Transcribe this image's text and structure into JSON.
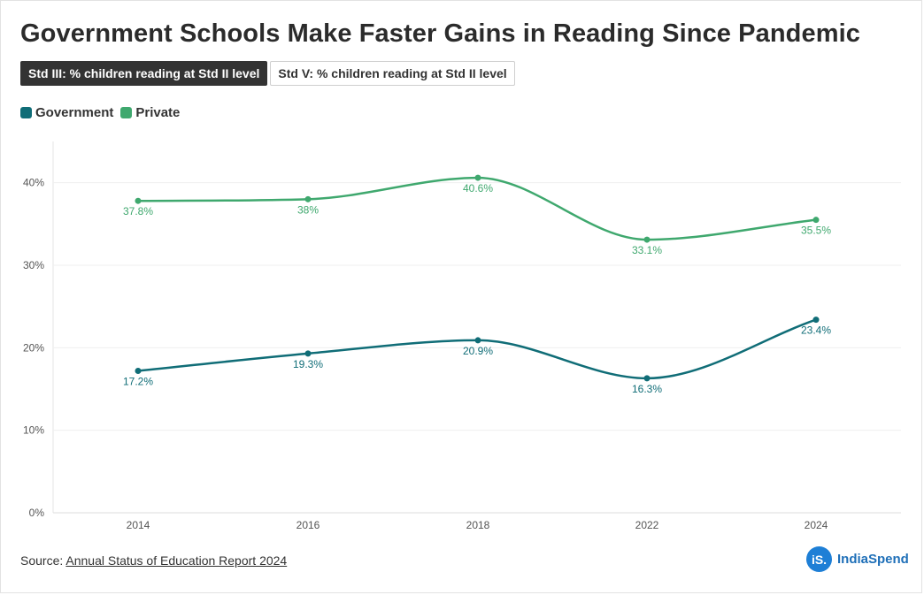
{
  "title": "Government Schools Make Faster Gains in Reading Since Pandemic",
  "tabs": [
    {
      "label": "Std III: % children reading at Std II level",
      "active": true
    },
    {
      "label": "Std V: % children reading at Std II level",
      "active": false
    }
  ],
  "source": {
    "prefix": "Source: ",
    "link_text": "Annual Status of Education Report 2024"
  },
  "brand": {
    "badge": "iS.",
    "name": "IndiaSpend"
  },
  "chart_data": {
    "type": "line",
    "title": "Government Schools Make Faster Gains in Reading Since Pandemic",
    "categories": [
      "2014",
      "2016",
      "2018",
      "2022",
      "2024"
    ],
    "y_ticks": [
      0,
      10,
      20,
      30,
      40
    ],
    "y_tick_labels": [
      "0%",
      "10%",
      "20%",
      "30%",
      "40%"
    ],
    "ylim": [
      0,
      45
    ],
    "xlabel": "",
    "ylabel": "",
    "legend_position": "top-left",
    "series": [
      {
        "name": "Government",
        "color": "#106d77",
        "values": [
          17.2,
          19.3,
          20.9,
          16.3,
          23.4
        ],
        "labels": [
          "17.2%",
          "19.3%",
          "20.9%",
          "16.3%",
          "23.4%"
        ]
      },
      {
        "name": "Private",
        "color": "#3fa86e",
        "values": [
          37.8,
          38,
          40.6,
          33.1,
          35.5
        ],
        "labels": [
          "37.8%",
          "38%",
          "40.6%",
          "33.1%",
          "35.5%"
        ]
      }
    ]
  }
}
